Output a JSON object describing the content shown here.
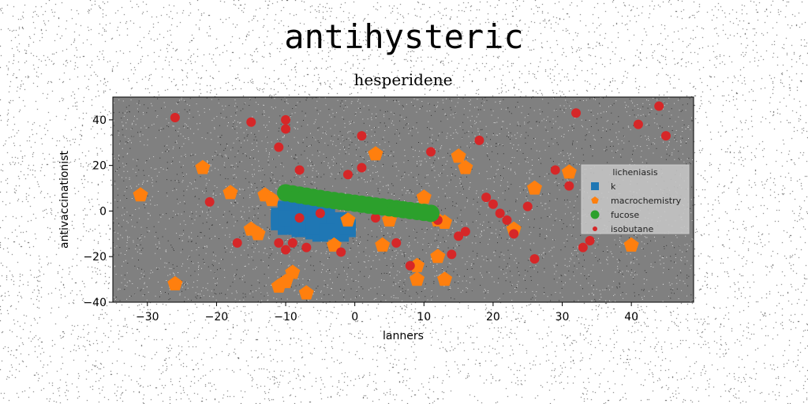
{
  "figure": {
    "suptitle": "antihysteric"
  },
  "chart_data": {
    "type": "scatter",
    "title": "hesperidene",
    "xlabel": "lanners",
    "ylabel": "antivaccinationist",
    "xlim": [
      -35,
      49
    ],
    "ylim": [
      -40,
      50
    ],
    "xticks": [
      -30,
      -20,
      -10,
      0,
      10,
      20,
      30,
      40
    ],
    "yticks": [
      -40,
      -20,
      0,
      20,
      40
    ],
    "xtick_labels": [
      "−30",
      "−20",
      "−10",
      "0",
      "10",
      "20",
      "30",
      "40"
    ],
    "ytick_labels": [
      "−40",
      "−20",
      "0",
      "20",
      "40"
    ],
    "grid": false,
    "legend_title": "licheniasis",
    "legend_position": "right",
    "background": "#808080",
    "series": [
      {
        "name": "k",
        "marker": "square",
        "color": "#1f77b4",
        "x": [
          -11,
          -10,
          -9,
          -8,
          -7,
          -6,
          -5,
          -4,
          -3,
          -2,
          -1,
          -11,
          -10,
          -9,
          -8,
          -7,
          -6,
          -5,
          -4,
          -3,
          -2,
          -10,
          -9,
          -8,
          -7,
          -6,
          -5,
          -4,
          -11,
          -9,
          -7,
          -5,
          -3,
          -1,
          -10,
          -8,
          -6,
          -4
        ],
        "y": [
          -2,
          -1,
          -3,
          -2,
          -4,
          -3,
          -5,
          -2,
          -6,
          -4,
          -8,
          -5,
          -7,
          -6,
          -8,
          -7,
          -9,
          -10,
          -8,
          -9,
          -10,
          1,
          2,
          0,
          3,
          1,
          2,
          0,
          -4,
          -4,
          -6,
          -6,
          -5,
          -7,
          -3,
          -5,
          -7,
          -9
        ]
      },
      {
        "name": "macrochemistry",
        "marker": "pentagon",
        "color": "#ff7f0e",
        "x": [
          -31,
          -26,
          -22,
          -18,
          -15,
          -14,
          -13,
          -12,
          -11,
          -10,
          -9,
          -7,
          -3,
          -1,
          3,
          4,
          5,
          9,
          9,
          10,
          12,
          12,
          13,
          13,
          15,
          16,
          23,
          26,
          31,
          40
        ],
        "y": [
          7,
          -32,
          19,
          8,
          -8,
          -10,
          7,
          5,
          -33,
          -31,
          -27,
          -36,
          -15,
          -4,
          25,
          -15,
          -4,
          -24,
          -30,
          6,
          -20,
          -4,
          -5,
          -30,
          24,
          19,
          -8,
          10,
          17,
          -15
        ]
      },
      {
        "name": "fucose",
        "marker": "circle",
        "color": "#2ca02c",
        "x": [
          -10,
          -9,
          -8,
          -7,
          -6,
          -5,
          -4,
          -3,
          -2,
          -1,
          0,
          1,
          2,
          3,
          4,
          5,
          6,
          7,
          8,
          9,
          10,
          11
        ],
        "y": [
          8,
          7.5,
          7,
          6.5,
          6,
          5.5,
          5,
          4.6,
          4.2,
          3.8,
          3.4,
          3,
          2.6,
          2.2,
          1.8,
          1.4,
          1,
          0.6,
          0.2,
          -0.2,
          -0.6,
          -1
        ]
      },
      {
        "name": "isobutane",
        "marker": "circle",
        "color": "#d62728",
        "x": [
          -26,
          -21,
          -17,
          -15,
          -11,
          -10,
          -10,
          -9,
          -8,
          -11,
          -10,
          -8,
          -7,
          -5,
          -2,
          -1,
          1,
          1,
          3,
          6,
          8,
          11,
          12,
          14,
          15,
          16,
          18,
          19,
          20,
          21,
          22,
          23,
          25,
          26,
          29,
          31,
          32,
          33,
          34,
          41,
          44,
          45
        ],
        "y": [
          41,
          4,
          -14,
          39,
          28,
          40,
          36,
          -14,
          18,
          -14,
          -17,
          -3,
          -16,
          -1,
          -18,
          16,
          19,
          33,
          -3,
          -14,
          -24,
          26,
          -4,
          -19,
          -11,
          -9,
          31,
          6,
          3,
          -1,
          -4,
          -10,
          2,
          -21,
          18,
          11,
          43,
          -16,
          -13,
          38,
          46,
          33
        ]
      }
    ]
  }
}
